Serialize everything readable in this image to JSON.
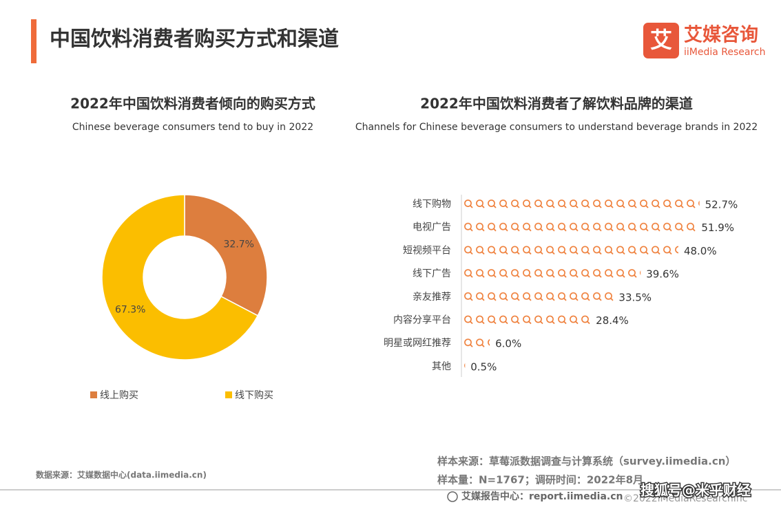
{
  "header": {
    "title": "中国饮料消费者购买方式和渠道",
    "logo_name": "艾媒咨询",
    "logo_sub": "iiMedia Research",
    "logo_mark": "艾"
  },
  "chart_data": [
    {
      "type": "pie",
      "title": "2022年中国饮料消费者倾向的购买方式",
      "subtitle": "Chinese beverage consumers tend to buy in 2022",
      "categories": [
        "线上购买",
        "线下购买"
      ],
      "values": [
        32.7,
        67.3
      ],
      "value_labels": [
        "32.7%",
        "67.3%"
      ],
      "colors": [
        "#dd7e3e",
        "#fbbe00"
      ],
      "donut": true
    },
    {
      "type": "pictograph",
      "title": "2022年中国饮料消费者了解饮料品牌的渠道",
      "subtitle": "Channels for Chinese beverage consumers to understand beverage brands in 2022",
      "categories": [
        "线下购物",
        "电视广告",
        "短视频平台",
        "线下广告",
        "亲友推荐",
        "内容分享平台",
        "明星或网红推荐",
        "其他"
      ],
      "values": [
        52.7,
        51.9,
        48.0,
        39.6,
        33.5,
        28.4,
        6.0,
        0.5
      ],
      "value_labels": [
        "52.7%",
        "51.9%",
        "48.0%",
        "39.6%",
        "33.5%",
        "28.4%",
        "6.0%",
        "0.5%"
      ],
      "color": "#ef7f3a"
    }
  ],
  "footer": {
    "data_source": "数据来源：艾媒数据中心(data.iimedia.cn)",
    "sample_source": "样本来源：草莓派数据调查与计算系统（survey.iimedia.cn）",
    "sample_size": "样本量：N=1767；调研时间：2022年8月",
    "report_center": "艾媒报告中心：report.iimedia.cn",
    "copyright": "©2022iMediaResearchInc",
    "watermark": "搜狐号@米乎财经"
  }
}
